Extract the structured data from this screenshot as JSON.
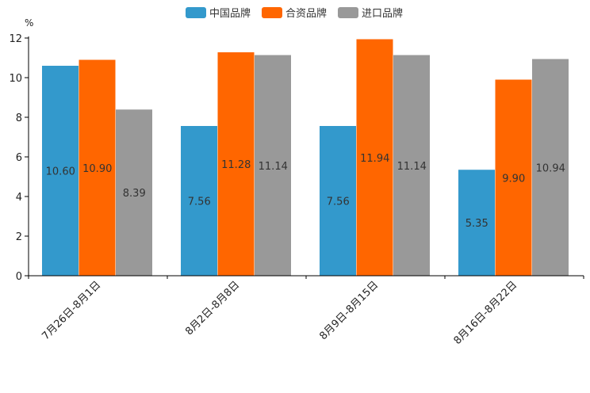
{
  "chart_data": {
    "type": "bar",
    "title": "",
    "ylabel": "%",
    "xlabel": "",
    "ylim": [
      0,
      12
    ],
    "yticks": [
      0,
      2,
      4,
      6,
      8,
      10,
      12
    ],
    "categories": [
      "7月26日-8月1日",
      "8月2日-8月8日",
      "8月9日-8月15日",
      "8月16日-8月22日"
    ],
    "series": [
      {
        "name": "中国品牌",
        "color": "#3399cc",
        "values": [
          10.6,
          7.56,
          7.56,
          5.35
        ],
        "labels": [
          "10.60",
          "7.56",
          "7.56",
          "5.35"
        ]
      },
      {
        "name": "合资品牌",
        "color": "#ff6600",
        "values": [
          10.9,
          11.28,
          11.94,
          9.9
        ],
        "labels": [
          "10.90",
          "11.28",
          "11.94",
          "9.90"
        ]
      },
      {
        "name": "进口品牌",
        "color": "#999999",
        "values": [
          8.39,
          11.14,
          11.14,
          10.94
        ],
        "labels": [
          "8.39",
          "11.14",
          "11.14",
          "10.94"
        ]
      }
    ],
    "legend": "top-center",
    "grid": false
  }
}
